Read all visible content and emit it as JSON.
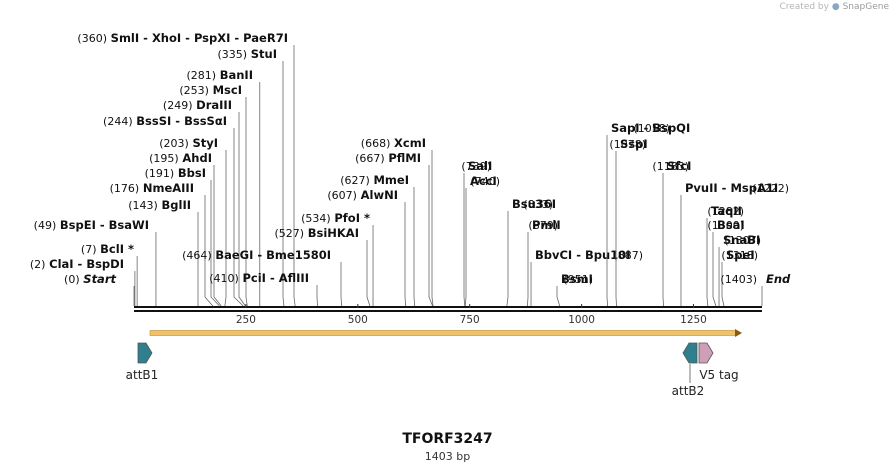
{
  "credit": {
    "prefix": "Created by",
    "brand": "SnapGene"
  },
  "title": "TFORF3247",
  "subtitle": "1403 bp",
  "sequence": {
    "length": 1403,
    "ticks": [
      250,
      500,
      750,
      1000,
      1250
    ]
  },
  "cut_sites": [
    {
      "label": "Start",
      "pos": 0,
      "pos_text": "(0)",
      "italic": true
    },
    {
      "label": "ClaI  -  BspDI",
      "pos": 2,
      "pos_text": "(2)"
    },
    {
      "label": "BclI *",
      "pos": 7,
      "pos_text": "(7)"
    },
    {
      "label": "BspEI  -  BsaWI",
      "pos": 49,
      "pos_text": "(49)"
    },
    {
      "label": "BglII",
      "pos": 143,
      "pos_text": "(143)"
    },
    {
      "label": "NmeAIII",
      "pos": 176,
      "pos_text": "(176)"
    },
    {
      "label": "BbsI",
      "pos": 191,
      "pos_text": "(191)"
    },
    {
      "label": "AhdI",
      "pos": 195,
      "pos_text": "(195)"
    },
    {
      "label": "StyI",
      "pos": 203,
      "pos_text": "(203)"
    },
    {
      "label": "BssSI  -  BssSαI",
      "pos": 244,
      "pos_text": "(244)"
    },
    {
      "label": "DraIII",
      "pos": 249,
      "pos_text": "(249)"
    },
    {
      "label": "MscI",
      "pos": 253,
      "pos_text": "(253)"
    },
    {
      "label": "BanII",
      "pos": 281,
      "pos_text": "(281)"
    },
    {
      "label": "StuI",
      "pos": 335,
      "pos_text": "(335)"
    },
    {
      "label": "SmlI  -  XhoI  -  PspXI  -  PaeR7I",
      "pos": 360,
      "pos_text": "(360)"
    },
    {
      "label": "PciI  -  AflIII",
      "pos": 410,
      "pos_text": "(410)"
    },
    {
      "label": "BaeGI  -  Bme1580I",
      "pos": 464,
      "pos_text": "(464)"
    },
    {
      "label": "BsiHKAI",
      "pos": 527,
      "pos_text": "(527)"
    },
    {
      "label": "PfoI *",
      "pos": 534,
      "pos_text": "(534)"
    },
    {
      "label": "AlwNI",
      "pos": 607,
      "pos_text": "(607)"
    },
    {
      "label": "MmeI",
      "pos": 627,
      "pos_text": "(627)"
    },
    {
      "label": "PflMI",
      "pos": 667,
      "pos_text": "(667)"
    },
    {
      "label": "XcmI",
      "pos": 668,
      "pos_text": "(668)"
    },
    {
      "label": "SalI",
      "pos": 739,
      "pos_text": "(739)"
    },
    {
      "label": "AccI",
      "pos": 740,
      "pos_text": "(740)"
    },
    {
      "label": "Bsu36I",
      "pos": 833,
      "pos_text": "(833)"
    },
    {
      "label": "PmlI",
      "pos": 879,
      "pos_text": "(879)"
    },
    {
      "label": "BbvCI  -  Bpu10I",
      "pos": 887,
      "pos_text": "(887)"
    },
    {
      "label": "BsmI",
      "pos": 951,
      "pos_text": "(951)"
    },
    {
      "label": "SapI  -  BspQI",
      "pos": 1058,
      "pos_text": "(1058)"
    },
    {
      "label": "SspI",
      "pos": 1078,
      "pos_text": "(1078)"
    },
    {
      "label": "SfcI",
      "pos": 1183,
      "pos_text": "(1183)"
    },
    {
      "label": "PvuII  -  MspA1I",
      "pos": 1222,
      "pos_text": "(1222)"
    },
    {
      "label": "TaqII",
      "pos": 1282,
      "pos_text": "(1282)"
    },
    {
      "label": "BsaI",
      "pos": 1300,
      "pos_text": "(1300)"
    },
    {
      "label": "SnaBI",
      "pos": 1307,
      "pos_text": "(1307)"
    },
    {
      "label": "SpeI",
      "pos": 1318,
      "pos_text": "(1318)"
    },
    {
      "label": "End",
      "pos": 1403,
      "pos_text": "(1403)",
      "italic": true
    }
  ],
  "features": [
    {
      "name": "attB1",
      "label": "attB1",
      "direction": "forward",
      "color": "#2f7f8f"
    },
    {
      "name": "attB2",
      "label": "attB2",
      "direction": "reverse",
      "color": "#2f7f8f"
    },
    {
      "name": "v5-tag",
      "label": "V5 tag",
      "direction": "forward",
      "color": "#cf9fb8"
    }
  ],
  "orf": {
    "color": "#f0c36a"
  }
}
